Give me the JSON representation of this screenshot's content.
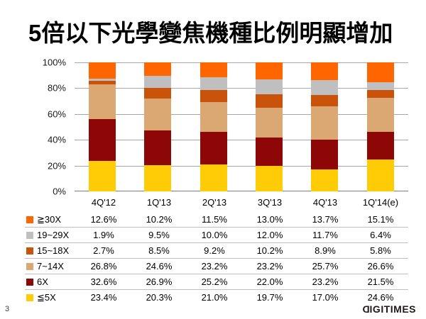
{
  "chart_data": {
    "type": "bar",
    "stacked": true,
    "percent_stacked": true,
    "title": "5倍以下光學變焦機種比例明顯增加",
    "xlabel": "",
    "ylabel": "",
    "ylim": [
      0,
      100
    ],
    "grid": true,
    "legend_position": "bottom-table",
    "y_ticks": [
      "100%",
      "80%",
      "60%",
      "40%",
      "20%",
      "0%"
    ],
    "categories": [
      "4Q'12",
      "1Q'13",
      "2Q'13",
      "3Q'13",
      "4Q'13",
      "1Q'14(e)"
    ],
    "series": [
      {
        "name": "≧30X",
        "color": "#FF6600",
        "values": [
          12.6,
          10.2,
          11.5,
          13.0,
          13.7,
          15.1
        ]
      },
      {
        "name": "19~29X",
        "color": "#BFBFBF",
        "values": [
          1.9,
          9.5,
          10.0,
          12.0,
          11.7,
          6.4
        ]
      },
      {
        "name": "15~18X",
        "color": "#C9530B",
        "values": [
          2.7,
          8.5,
          9.2,
          10.2,
          8.9,
          5.8
        ]
      },
      {
        "name": "7~14X",
        "color": "#DBA873",
        "values": [
          26.8,
          24.6,
          23.2,
          23.2,
          25.7,
          26.6
        ]
      },
      {
        "name": "6X",
        "color": "#8D0707",
        "values": [
          32.6,
          26.9,
          25.2,
          22.0,
          23.2,
          21.5
        ]
      },
      {
        "name": "≦5X",
        "color": "#FFCC05",
        "values": [
          23.4,
          20.3,
          21.0,
          19.7,
          17.0,
          24.6
        ]
      }
    ],
    "value_suffix": "%"
  },
  "footer": {
    "page_number": "3",
    "logo_mirrored_first_letter": "D",
    "logo_rest": "IGITIMES"
  },
  "colors": {
    "gridline": "#A8A8A8",
    "axis_line": "#7F7F7F",
    "row_separator": "#BFBFBF",
    "logo": "#231815"
  }
}
